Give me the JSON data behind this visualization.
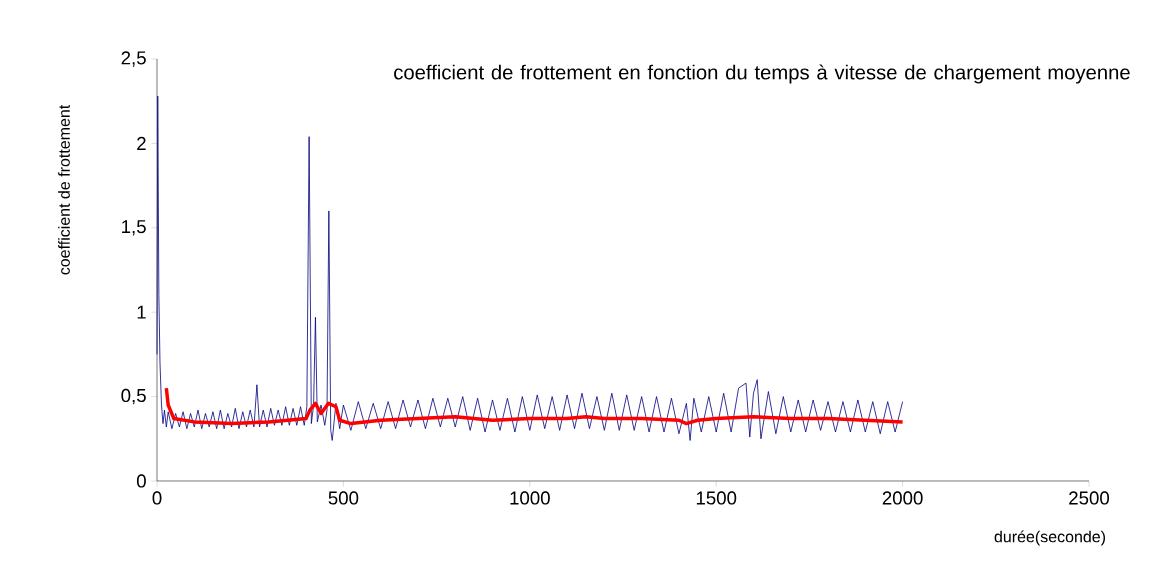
{
  "chart_data": {
    "type": "line",
    "title": "coefficient de frottement en fonction du temps à vitesse de chargement moyenne",
    "xlabel": "durée(seconde)",
    "ylabel": "coefficient de frottement",
    "xlim": [
      0,
      2500
    ],
    "ylim": [
      0,
      2.5
    ],
    "xticks": [
      0,
      500,
      1000,
      1500,
      2000,
      2500
    ],
    "yticks": [
      0,
      {
        "value": 0.5,
        "label": "0,5"
      },
      1,
      {
        "value": 1.5,
        "label": "1,5"
      },
      2,
      {
        "value": 2.5,
        "label": "2,5"
      }
    ],
    "grid": false,
    "marker": "none",
    "line_style": "solid",
    "series": [
      {
        "color": "#000080",
        "x": [
          0,
          2,
          5,
          8,
          12,
          16,
          20,
          25,
          30,
          40,
          50,
          60,
          70,
          80,
          90,
          100,
          110,
          120,
          130,
          140,
          150,
          160,
          170,
          180,
          190,
          200,
          210,
          220,
          230,
          240,
          250,
          260,
          268,
          275,
          285,
          295,
          305,
          315,
          325,
          335,
          345,
          355,
          365,
          375,
          385,
          395,
          402,
          408,
          414,
          420,
          425,
          430,
          440,
          450,
          456,
          461,
          466,
          470,
          480,
          490,
          500,
          520,
          540,
          560,
          580,
          600,
          620,
          640,
          660,
          680,
          700,
          720,
          740,
          760,
          780,
          800,
          820,
          840,
          860,
          880,
          900,
          920,
          940,
          960,
          980,
          1000,
          1020,
          1040,
          1060,
          1080,
          1100,
          1120,
          1140,
          1160,
          1180,
          1200,
          1220,
          1240,
          1260,
          1280,
          1300,
          1320,
          1340,
          1360,
          1380,
          1400,
          1420,
          1430,
          1440,
          1460,
          1480,
          1500,
          1520,
          1540,
          1560,
          1580,
          1590,
          1600,
          1610,
          1620,
          1640,
          1660,
          1680,
          1700,
          1720,
          1740,
          1760,
          1780,
          1800,
          1820,
          1840,
          1860,
          1880,
          1900,
          1920,
          1940,
          1960,
          1980,
          2000
        ],
        "values": [
          0.75,
          2.28,
          1.1,
          0.7,
          0.45,
          0.34,
          0.42,
          0.32,
          0.41,
          0.31,
          0.4,
          0.32,
          0.41,
          0.31,
          0.4,
          0.32,
          0.42,
          0.31,
          0.4,
          0.32,
          0.41,
          0.31,
          0.42,
          0.31,
          0.4,
          0.32,
          0.43,
          0.31,
          0.41,
          0.32,
          0.42,
          0.32,
          0.57,
          0.32,
          0.42,
          0.32,
          0.43,
          0.33,
          0.42,
          0.33,
          0.44,
          0.33,
          0.43,
          0.33,
          0.44,
          0.33,
          0.44,
          2.04,
          0.34,
          0.45,
          0.97,
          0.35,
          0.45,
          0.33,
          0.42,
          1.6,
          0.3,
          0.24,
          0.46,
          0.31,
          0.45,
          0.3,
          0.47,
          0.31,
          0.46,
          0.31,
          0.47,
          0.31,
          0.48,
          0.32,
          0.48,
          0.31,
          0.49,
          0.32,
          0.49,
          0.32,
          0.5,
          0.3,
          0.49,
          0.29,
          0.48,
          0.3,
          0.49,
          0.29,
          0.5,
          0.3,
          0.51,
          0.31,
          0.5,
          0.3,
          0.51,
          0.31,
          0.52,
          0.31,
          0.5,
          0.3,
          0.52,
          0.3,
          0.51,
          0.3,
          0.5,
          0.29,
          0.5,
          0.29,
          0.49,
          0.28,
          0.46,
          0.24,
          0.49,
          0.29,
          0.5,
          0.29,
          0.52,
          0.29,
          0.55,
          0.58,
          0.26,
          0.52,
          0.6,
          0.25,
          0.53,
          0.28,
          0.5,
          0.29,
          0.48,
          0.29,
          0.48,
          0.3,
          0.47,
          0.29,
          0.47,
          0.29,
          0.48,
          0.29,
          0.47,
          0.28,
          0.47,
          0.29,
          0.47
        ]
      },
      {
        "color": "#ff0000",
        "x": [
          25,
          30,
          45,
          100,
          200,
          300,
          350,
          400,
          410,
          425,
          440,
          460,
          480,
          490,
          520,
          600,
          700,
          800,
          850,
          900,
          1000,
          1100,
          1150,
          1200,
          1300,
          1400,
          1420,
          1450,
          1500,
          1600,
          1700,
          1800,
          1900,
          2000
        ],
        "values": [
          0.55,
          0.45,
          0.37,
          0.35,
          0.34,
          0.35,
          0.36,
          0.37,
          0.42,
          0.46,
          0.4,
          0.46,
          0.44,
          0.36,
          0.34,
          0.36,
          0.37,
          0.38,
          0.37,
          0.36,
          0.37,
          0.37,
          0.38,
          0.37,
          0.37,
          0.36,
          0.34,
          0.36,
          0.37,
          0.38,
          0.37,
          0.37,
          0.36,
          0.35
        ]
      }
    ]
  }
}
